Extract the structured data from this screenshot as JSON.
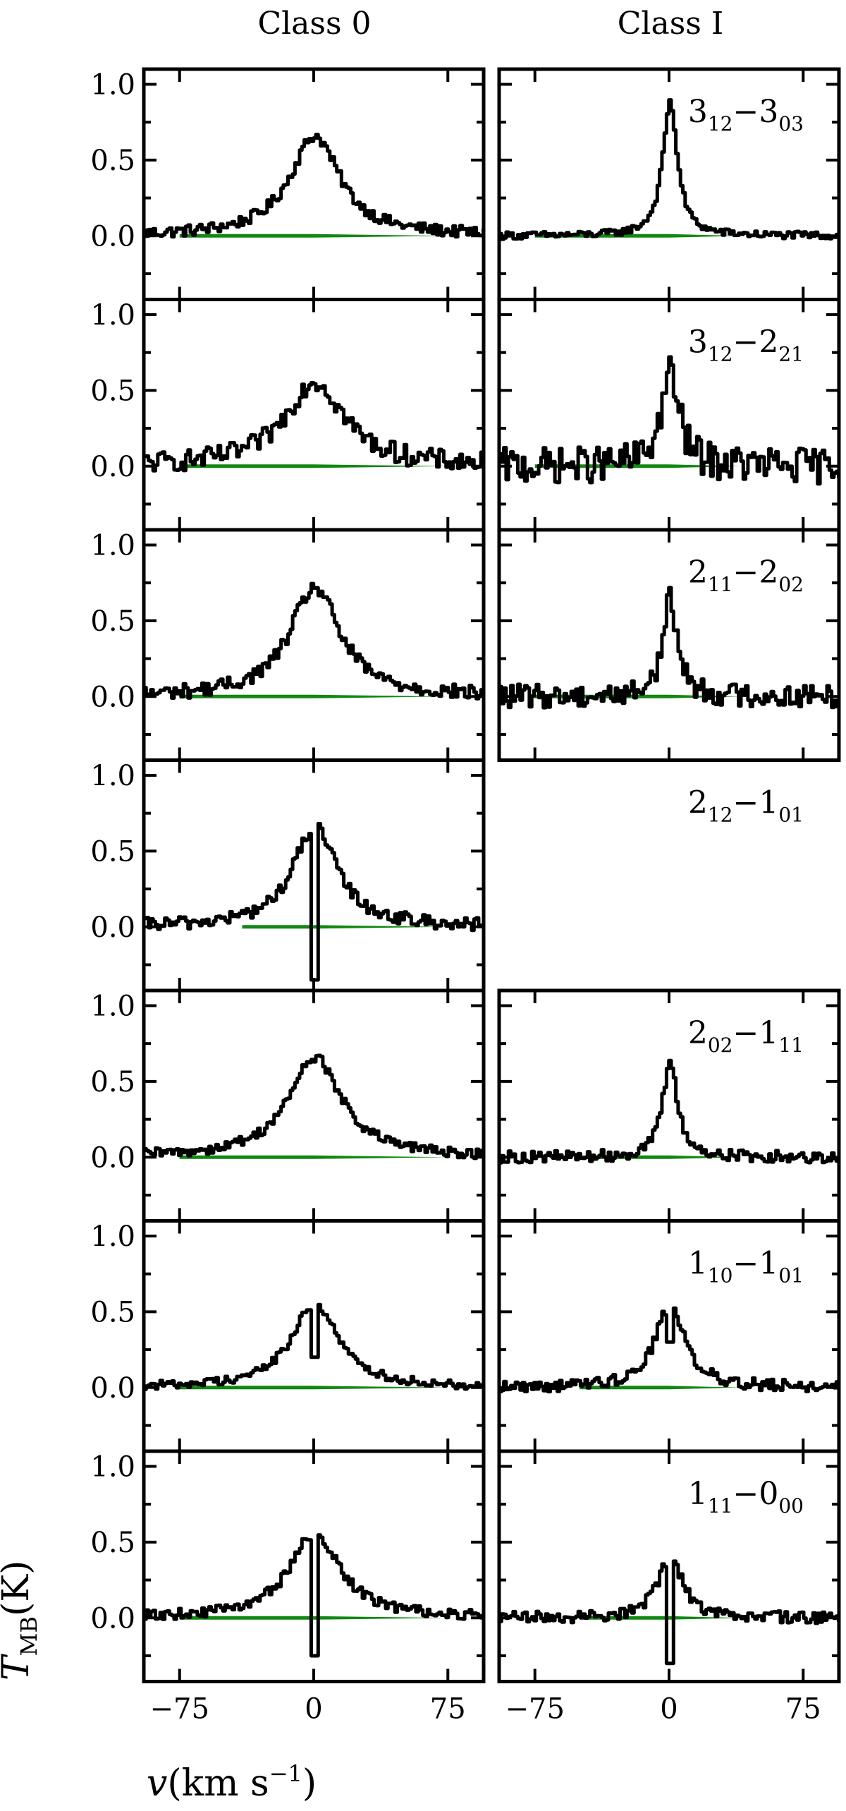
{
  "colors": {
    "spectrum": "#000000",
    "baseline": "#118811"
  },
  "chart_data": {
    "type": "line",
    "columns": [
      "Class 0",
      "Class I"
    ],
    "rows": [
      {
        "transition": {
          "j": "3",
          "js": "12",
          "sep": "−",
          "k": "3",
          "ks": "03"
        }
      },
      {
        "transition": {
          "j": "3",
          "js": "12",
          "sep": "−",
          "k": "2",
          "ks": "21"
        }
      },
      {
        "transition": {
          "j": "2",
          "js": "11",
          "sep": "−",
          "k": "2",
          "ks": "02"
        }
      },
      {
        "transition": {
          "j": "2",
          "js": "12",
          "sep": "−",
          "k": "1",
          "ks": "01"
        }
      },
      {
        "transition": {
          "j": "2",
          "js": "02",
          "sep": "−",
          "k": "1",
          "ks": "11"
        }
      },
      {
        "transition": {
          "j": "1",
          "js": "10",
          "sep": "−",
          "k": "1",
          "ks": "01"
        }
      },
      {
        "transition": {
          "j": "1",
          "js": "11",
          "sep": "−",
          "k": "0",
          "ks": "00"
        }
      }
    ],
    "xlim": [
      -95,
      95
    ],
    "ylim": [
      -0.42,
      1.1
    ],
    "x_ticks": [
      -75,
      0,
      75
    ],
    "x_tick_labels": [
      "−75",
      "0",
      "75"
    ],
    "y_ticks": [
      0.0,
      0.5,
      1.0
    ],
    "y_tick_labels": [
      "0.0",
      "0.5",
      "1.0"
    ],
    "xlabel": {
      "main": "v",
      "open": "(km s",
      "sup": "−1",
      "close": ")"
    },
    "ylabel": {
      "main": "T",
      "sub": "MB",
      "unit": "(K)"
    },
    "series": [
      {
        "col": 0,
        "row": 0,
        "peak": 0.66,
        "width": 17,
        "noise": 0.04,
        "dip": 0,
        "baseline_from": -75,
        "baseline_to": 0,
        "baseline_tail": 75
      },
      {
        "col": 1,
        "row": 0,
        "peak": 0.88,
        "width": 5,
        "noise": 0.025,
        "dip": 0,
        "baseline_from": -75,
        "baseline_to": 0,
        "baseline_tail": 40
      },
      {
        "col": 0,
        "row": 1,
        "peak": 0.56,
        "width": 20,
        "noise": 0.07,
        "dip": 0,
        "baseline_from": -75,
        "baseline_to": 0,
        "baseline_tail": 75
      },
      {
        "col": 1,
        "row": 1,
        "peak": 0.62,
        "width": 6,
        "noise": 0.12,
        "dip": 0,
        "baseline_from": -75,
        "baseline_to": 0,
        "baseline_tail": 40
      },
      {
        "col": 0,
        "row": 2,
        "peak": 0.72,
        "width": 17,
        "noise": 0.05,
        "dip": 0,
        "baseline_from": -75,
        "baseline_to": 0,
        "baseline_tail": 75
      },
      {
        "col": 1,
        "row": 2,
        "peak": 0.64,
        "width": 5,
        "noise": 0.08,
        "dip": 0,
        "baseline_from": -75,
        "baseline_to": 0,
        "baseline_tail": 40
      },
      {
        "col": 0,
        "row": 3,
        "peak": 0.66,
        "width": 15,
        "noise": 0.045,
        "dip": -0.35,
        "baseline_from": -40,
        "baseline_to": 0,
        "baseline_tail": 75
      },
      {
        "col": 0,
        "row": 4,
        "peak": 0.66,
        "width": 18,
        "noise": 0.035,
        "dip": 0,
        "baseline_from": -75,
        "baseline_to": 0,
        "baseline_tail": 75
      },
      {
        "col": 1,
        "row": 4,
        "peak": 0.63,
        "width": 5,
        "noise": 0.04,
        "dip": 0,
        "baseline_from": -50,
        "baseline_to": 0,
        "baseline_tail": 40
      },
      {
        "col": 0,
        "row": 5,
        "peak": 0.55,
        "width": 16,
        "noise": 0.03,
        "dip": 0.2,
        "baseline_from": -75,
        "baseline_to": 0,
        "baseline_tail": 75
      },
      {
        "col": 1,
        "row": 5,
        "peak": 0.55,
        "width": 10,
        "noise": 0.04,
        "dip": 0.3,
        "baseline_from": -50,
        "baseline_to": 0,
        "baseline_tail": 40
      },
      {
        "col": 0,
        "row": 6,
        "peak": 0.56,
        "width": 17,
        "noise": 0.035,
        "dip": -0.25,
        "baseline_from": -75,
        "baseline_to": 0,
        "baseline_tail": 75
      },
      {
        "col": 1,
        "row": 6,
        "peak": 0.42,
        "width": 8,
        "noise": 0.04,
        "dip": -0.3,
        "baseline_from": -50,
        "baseline_to": 0,
        "baseline_tail": 40
      }
    ]
  }
}
